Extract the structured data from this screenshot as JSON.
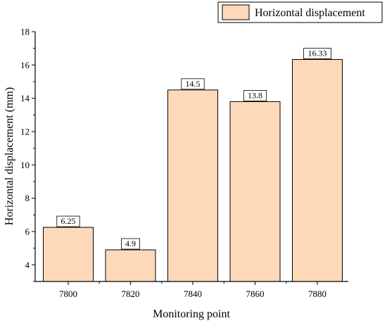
{
  "chart_data": {
    "type": "bar",
    "categories": [
      "7800",
      "7820",
      "7840",
      "7860",
      "7880"
    ],
    "series": [
      {
        "name": "Horizontal displacement",
        "values": [
          6.25,
          4.9,
          14.5,
          13.8,
          16.33
        ]
      }
    ],
    "data_labels": [
      "6.25",
      "4.9",
      "14.5",
      "13.8",
      "16.33"
    ],
    "xlabel": "Monitoring point",
    "ylabel": "Horizontal displacement (mm)",
    "ylim": [
      3,
      18
    ],
    "yticks": [
      4,
      6,
      8,
      10,
      12,
      14,
      16,
      18
    ],
    "grid": false,
    "legend_position": "top-right",
    "colors": {
      "bar_fill": "#FDD9B9",
      "bar_stroke": "#000000",
      "axis": "#000000"
    }
  }
}
